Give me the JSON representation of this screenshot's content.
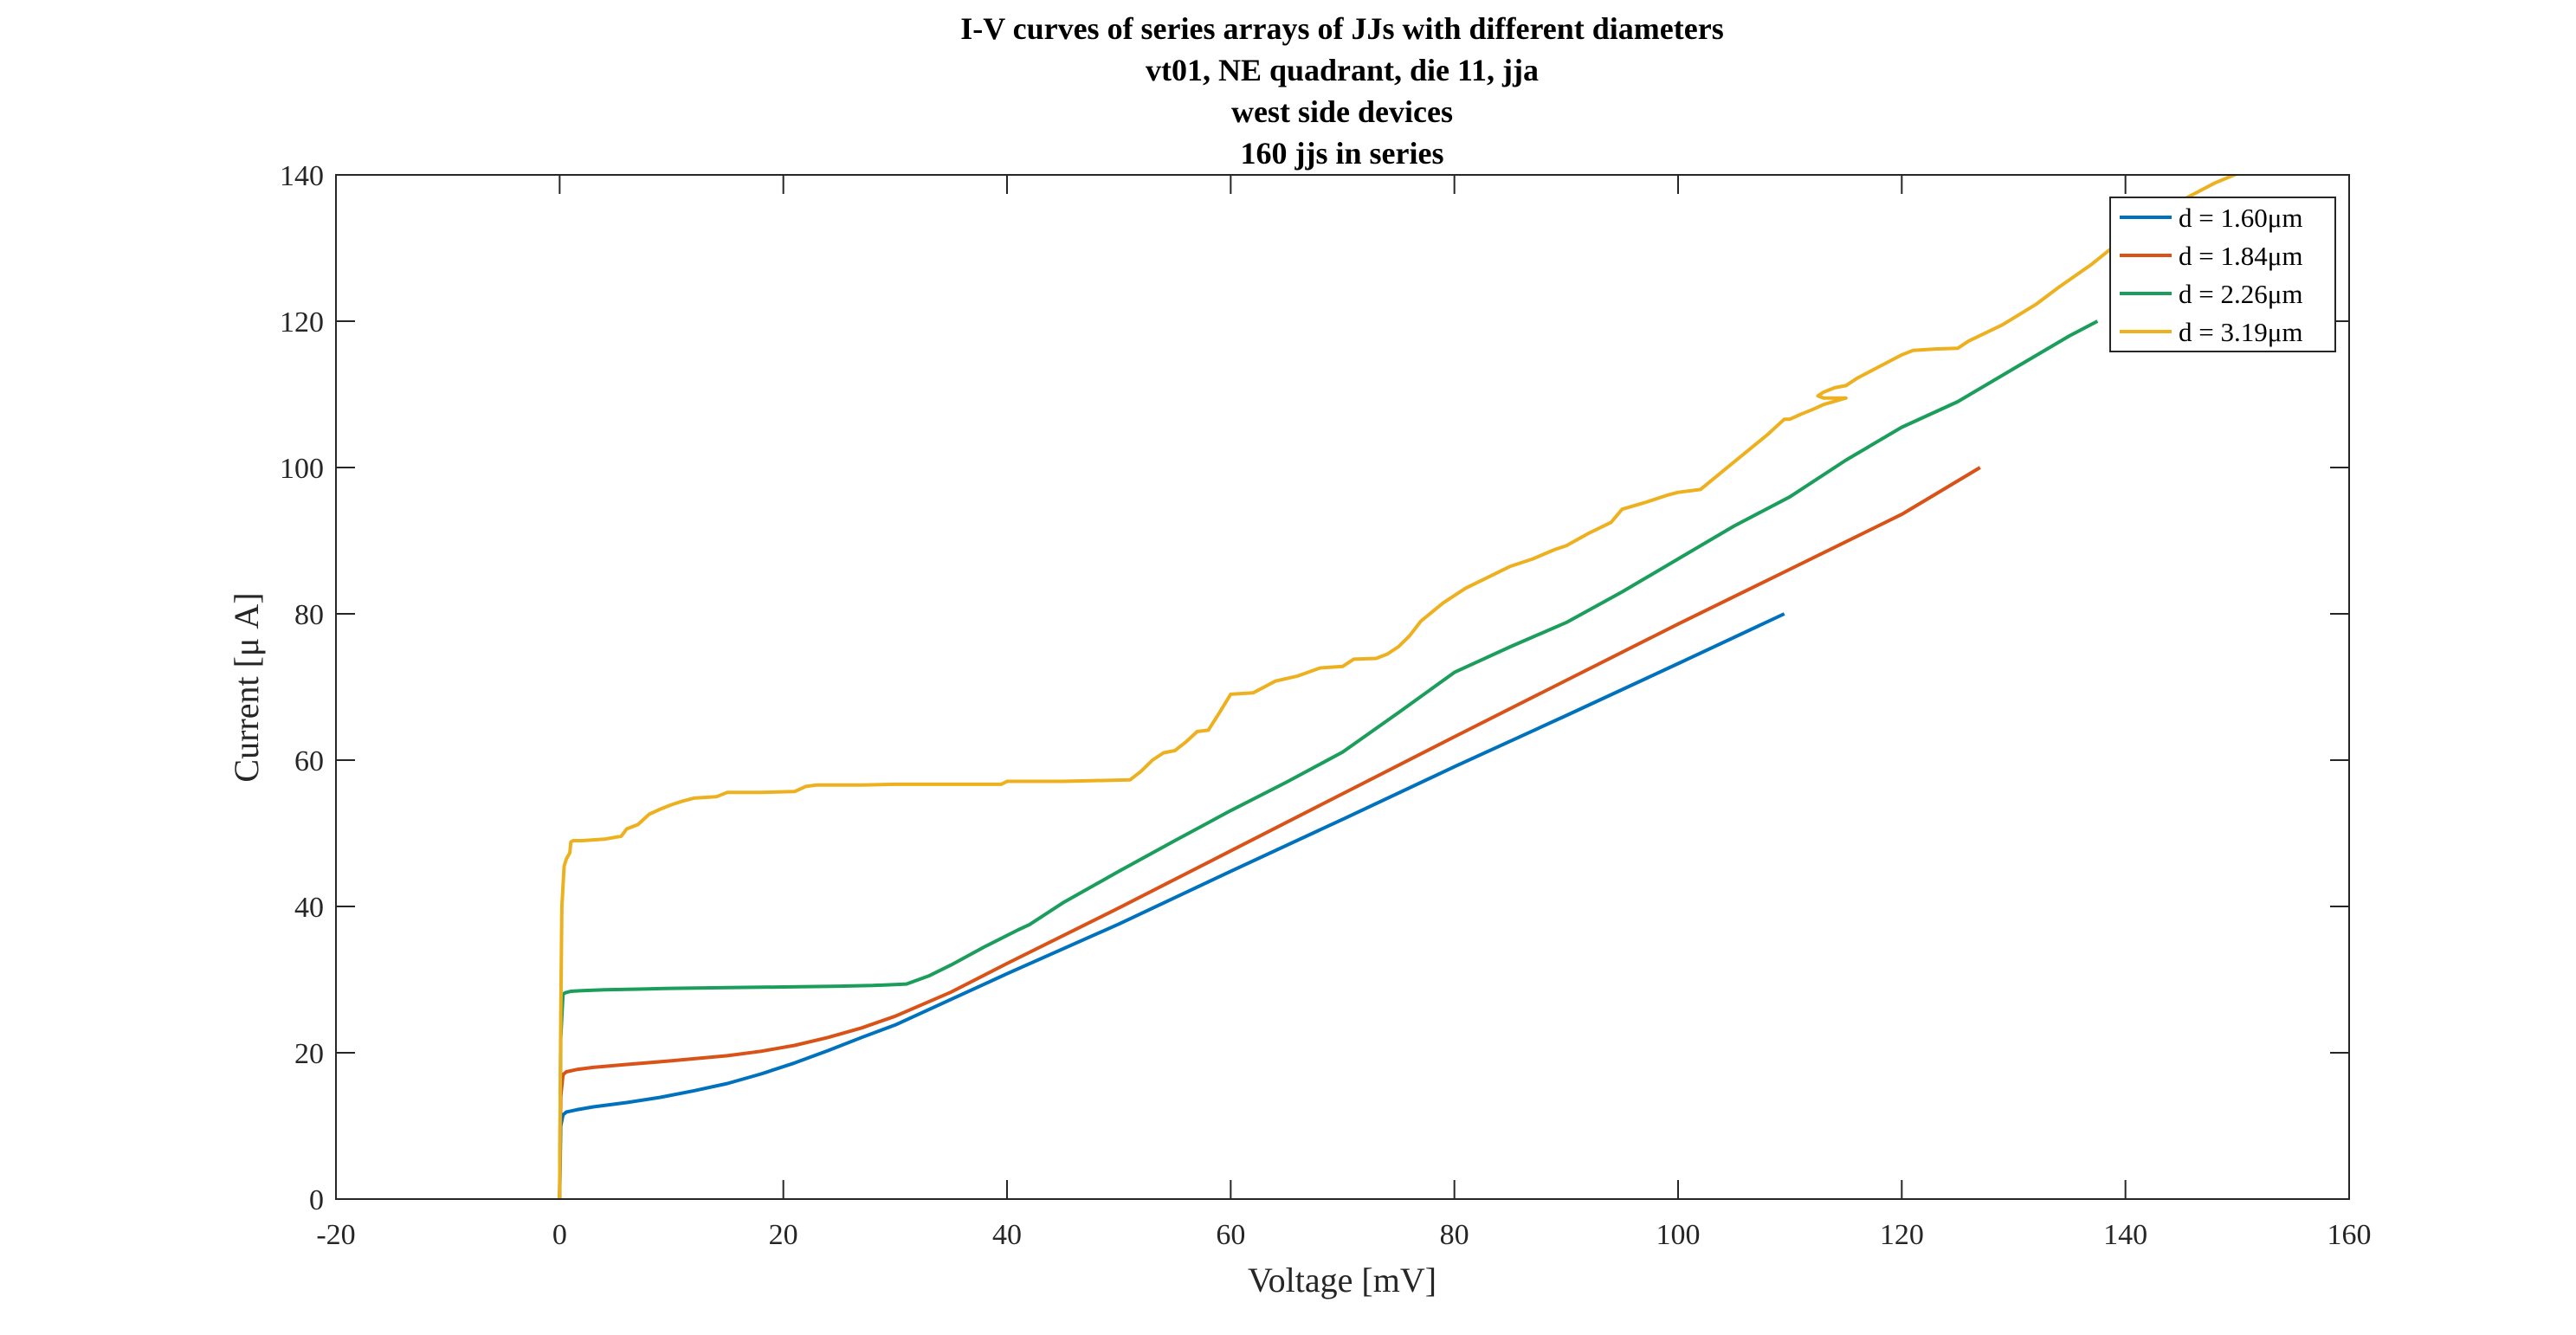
{
  "chart_data": {
    "type": "line",
    "title": [
      "I-V curves of series arrays of JJs with different diameters",
      "vt01, NE quadrant, die 11, jja",
      "west side devices",
      "160 jjs in series"
    ],
    "xlabel": "Voltage [mV]",
    "ylabel": "Current [μ A]",
    "xlim": [
      -20,
      160
    ],
    "ylim": [
      0,
      140
    ],
    "xticks": [
      "-20",
      "0",
      "20",
      "40",
      "60",
      "80",
      "100",
      "120",
      "140",
      "160"
    ],
    "yticks": [
      "0",
      "20",
      "40",
      "60",
      "80",
      "100",
      "120",
      "140"
    ],
    "grid": false,
    "legend_position": "top-right",
    "series": [
      {
        "name": "d = 1.60μm",
        "color": "#0072BD",
        "x": [
          0,
          0.1,
          0.3,
          0.6,
          1.5,
          3,
          6,
          9,
          12,
          15,
          18,
          21,
          24,
          27,
          30,
          40,
          50,
          60,
          70,
          80,
          90,
          100,
          109.5
        ],
        "y": [
          0,
          10,
          11.5,
          11.9,
          12.2,
          12.6,
          13.2,
          13.9,
          14.8,
          15.8,
          17.1,
          18.6,
          20.3,
          22.1,
          23.8,
          30.8,
          37.6,
          44.8,
          51.9,
          59.1,
          66.1,
          73.2,
          80
        ]
      },
      {
        "name": "d = 1.84μm",
        "color": "#D95319",
        "x": [
          0,
          0.1,
          0.3,
          0.6,
          1.5,
          3,
          6,
          10,
          15,
          18,
          21,
          24,
          27,
          30,
          35,
          40,
          50,
          60,
          70,
          80,
          90,
          100,
          110,
          120,
          127
        ],
        "y": [
          0,
          14,
          17,
          17.4,
          17.7,
          18,
          18.4,
          18.9,
          19.6,
          20.2,
          21,
          22.1,
          23.4,
          25,
          28.3,
          32.2,
          39.8,
          47.6,
          55.4,
          63.2,
          70.9,
          78.6,
          86.1,
          93.6,
          100
        ]
      },
      {
        "name": "d = 2.26μm",
        "color": "#1B9E5B",
        "x": [
          0,
          0.1,
          0.3,
          0.5,
          1,
          2,
          4,
          7,
          10,
          15,
          20,
          25,
          28,
          31,
          33,
          35,
          38,
          41,
          42,
          45,
          50,
          55,
          60,
          65,
          70,
          75,
          80,
          85,
          90,
          95,
          100,
          105,
          110,
          115,
          120,
          125,
          130,
          135,
          137.5
        ],
        "y": [
          0,
          22,
          28,
          28.2,
          28.4,
          28.5,
          28.6,
          28.7,
          28.8,
          28.9,
          29,
          29.1,
          29.2,
          29.4,
          30.5,
          32,
          34.5,
          36.8,
          37.5,
          40.5,
          44.8,
          49,
          53.1,
          57,
          61.1,
          66.5,
          72,
          75.5,
          78.8,
          83,
          87.5,
          92,
          96,
          101,
          105.5,
          109,
          113.5,
          118,
          120
        ]
      },
      {
        "name": "d = 3.19μm",
        "color": "#EDB120",
        "x": [
          0,
          0.1,
          0.2,
          0.4,
          0.6,
          0.9,
          1.0,
          1.2,
          2,
          4,
          5.5,
          6,
          7,
          8,
          9,
          10,
          11,
          12,
          14,
          15,
          18,
          21,
          22,
          23,
          27,
          30,
          35,
          39.5,
          40,
          45,
          51,
          52,
          53,
          54,
          55,
          56,
          57,
          58,
          59,
          60,
          62,
          63,
          64,
          66,
          68,
          70,
          71,
          73,
          74,
          75,
          76,
          77,
          79,
          81,
          83,
          85,
          87,
          89,
          90,
          92,
          94,
          95,
          97,
          99,
          100,
          102,
          104,
          106,
          108,
          109.5,
          110,
          111,
          112,
          113,
          115,
          113,
          112.5,
          113,
          114,
          115,
          116,
          118,
          120,
          121,
          123,
          125,
          126,
          129,
          132,
          134,
          137,
          140,
          142,
          145,
          148,
          151,
          153
        ],
        "y": [
          0,
          25,
          40,
          45.5,
          46.5,
          47.3,
          48.8,
          49,
          49,
          49.2,
          49.6,
          50.6,
          51.2,
          52.6,
          53.3,
          53.9,
          54.4,
          54.8,
          55,
          55.6,
          55.6,
          55.7,
          56.4,
          56.6,
          56.6,
          56.7,
          56.7,
          56.7,
          57.1,
          57.1,
          57.3,
          58.5,
          60,
          61,
          61.3,
          62.5,
          63.9,
          64.1,
          66.5,
          69,
          69.2,
          70,
          70.8,
          71.5,
          72.6,
          72.8,
          73.8,
          73.9,
          74.5,
          75.5,
          77,
          79,
          81.5,
          83.5,
          85,
          86.5,
          87.5,
          88.8,
          89.3,
          91,
          92.5,
          94.3,
          95.2,
          96.2,
          96.6,
          97,
          99.5,
          102,
          104.5,
          106.6,
          106.6,
          107.3,
          107.9,
          108.6,
          109.5,
          109.5,
          109.8,
          110.3,
          110.9,
          111.2,
          112.2,
          113.8,
          115.4,
          116,
          116.2,
          116.3,
          117.3,
          119.5,
          122.3,
          124.6,
          127.8,
          131.5,
          133.8,
          136.5,
          138.9,
          140.8,
          142
        ]
      }
    ]
  }
}
